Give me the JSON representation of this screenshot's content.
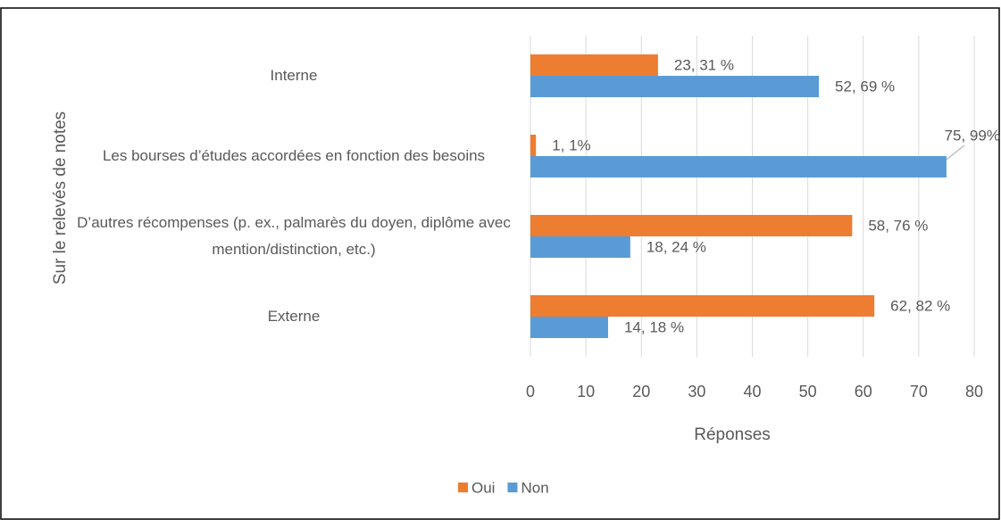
{
  "chart_data": {
    "type": "hbar",
    "y_axis_label": "Sur le relevés de notes",
    "x_axis_label": "Réponses",
    "categories": [
      "Interne",
      "Les bourses d’études accordées en fonction des besoins",
      "D’autres récompenses (p. ex., palmarès du doyen, diplôme avec mention/distinction, etc.)",
      "Externe"
    ],
    "series": [
      {
        "name": "Oui",
        "color": "#ed7d31",
        "values": [
          23,
          1,
          58,
          62
        ],
        "value_labels": [
          "23, 31 %",
          "1, 1%",
          "58, 76 %",
          "62, 82 %"
        ]
      },
      {
        "name": "Non",
        "color": "#5b9bd5",
        "values": [
          52,
          75,
          18,
          14
        ],
        "value_labels": [
          "52, 69 %",
          "75, 99%",
          "18, 24 %",
          "14, 18 %"
        ]
      }
    ],
    "xlim": [
      0,
      80
    ],
    "xticks": [
      0,
      10,
      20,
      30,
      40,
      50,
      60,
      70,
      80
    ],
    "grid": true,
    "legend": "bottom"
  }
}
